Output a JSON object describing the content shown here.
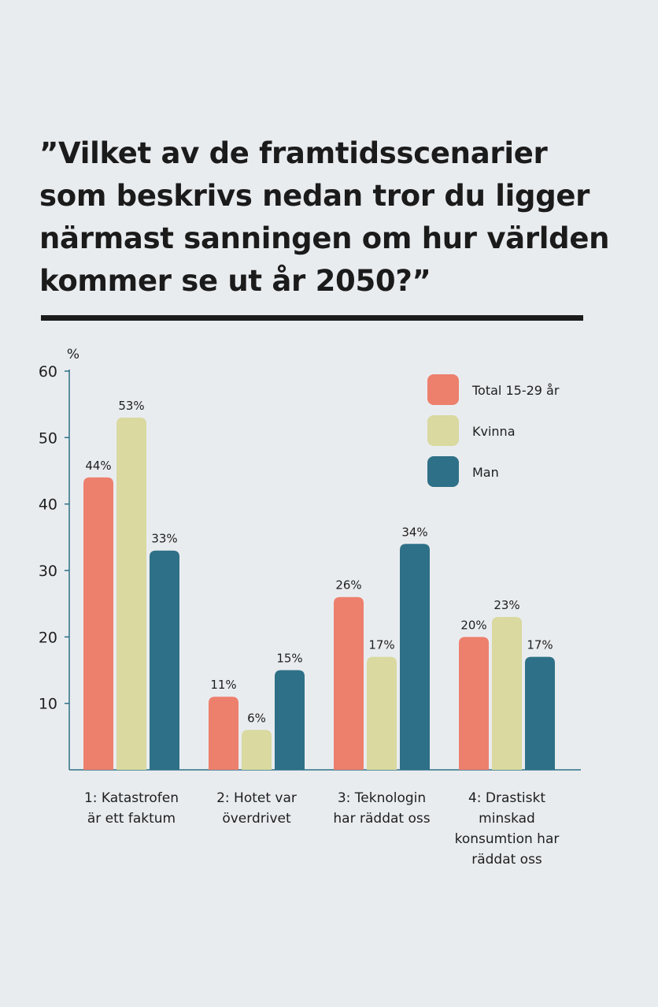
{
  "chart_data": {
    "type": "bar",
    "title": "”Vilket av de framtidsscenarier som beskrivs nedan tror du ligger närmast sanningen om hur världen kommer se ut år 2050?”",
    "ylabel": "%",
    "xlabel": "",
    "ylim": [
      0,
      60
    ],
    "yticks": [
      10,
      20,
      30,
      40,
      50,
      60
    ],
    "grid": false,
    "legend_position": "top-right",
    "categories": [
      "1: Katastrofen är ett faktum",
      "2: Hotet var överdrivet",
      "3: Teknologin har räddat oss",
      "4: Drastiskt minskad konsumtion har räddat oss"
    ],
    "category_lines": [
      [
        "1: Katastrofen",
        "är ett faktum"
      ],
      [
        "2: Hotet var",
        "överdrivet"
      ],
      [
        "3: Teknologin",
        "har räddat oss"
      ],
      [
        "4: Drastiskt",
        "minskad",
        "konsumtion har",
        "räddat oss"
      ]
    ],
    "series": [
      {
        "name": "Total 15-29 år",
        "color": "#ed7f6d",
        "values": [
          44,
          11,
          26,
          20
        ],
        "labels": [
          "44%",
          "11%",
          "26%",
          "20%"
        ]
      },
      {
        "name": "Kvinna",
        "color": "#d9d9a0",
        "values": [
          53,
          6,
          17,
          23
        ],
        "labels": [
          "53%",
          "6%",
          "17%",
          "23%"
        ]
      },
      {
        "name": "Man",
        "color": "#2e7087",
        "values": [
          33,
          15,
          34,
          17
        ],
        "labels": [
          "33%",
          "15%",
          "34%",
          "17%"
        ]
      }
    ],
    "axis_color": "#2e7087"
  }
}
